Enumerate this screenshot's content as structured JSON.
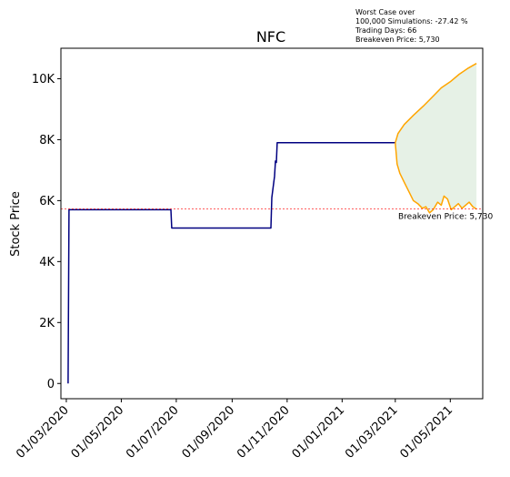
{
  "chart_data": {
    "type": "line",
    "title": "NFC",
    "ylabel": "Stock Price",
    "xlabel": "",
    "ylim": [
      -500,
      11000
    ],
    "xlim": [
      "2020-02-24",
      "2021-06-06"
    ],
    "yticks": [
      0,
      2000,
      4000,
      6000,
      8000,
      10000
    ],
    "ytick_labels": [
      "0",
      "2K",
      "4K",
      "6K",
      "8K",
      "10K"
    ],
    "xticks": [
      "2020-03-01",
      "2020-05-01",
      "2020-07-01",
      "2020-09-01",
      "2020-11-01",
      "2021-01-01",
      "2021-03-01",
      "2021-05-01"
    ],
    "xtick_labels": [
      "01/03/2020",
      "01/05/2020",
      "01/07/2020",
      "01/09/2020",
      "01/11/2020",
      "01/01/2021",
      "01/03/2021",
      "01/05/2021"
    ],
    "grid": false,
    "series": [
      {
        "role": "historical",
        "color": "#000080",
        "points": [
          [
            "2020-03-03",
            0
          ],
          [
            "2020-03-04",
            5700
          ],
          [
            "2020-06-25",
            5700
          ],
          [
            "2020-06-26",
            5100
          ],
          [
            "2020-10-14",
            5100
          ],
          [
            "2020-10-15",
            6100
          ],
          [
            "2020-10-18",
            6800
          ],
          [
            "2020-10-19",
            7300
          ],
          [
            "2020-10-20",
            7250
          ],
          [
            "2020-10-21",
            7900
          ],
          [
            "2021-03-01",
            7900
          ]
        ]
      },
      {
        "role": "upper_bound",
        "color": "#FFA500",
        "points": [
          [
            "2021-03-01",
            7900
          ],
          [
            "2021-03-04",
            8200
          ],
          [
            "2021-03-11",
            8500
          ],
          [
            "2021-03-21",
            8800
          ],
          [
            "2021-04-01",
            9100
          ],
          [
            "2021-04-11",
            9400
          ],
          [
            "2021-04-21",
            9700
          ],
          [
            "2021-05-01",
            9900
          ],
          [
            "2021-05-11",
            10150
          ],
          [
            "2021-05-21",
            10350
          ],
          [
            "2021-05-30",
            10500
          ]
        ]
      },
      {
        "role": "lower_bound",
        "color": "#FFA500",
        "points": [
          [
            "2021-03-01",
            7900
          ],
          [
            "2021-03-03",
            7200
          ],
          [
            "2021-03-06",
            6900
          ],
          [
            "2021-03-11",
            6600
          ],
          [
            "2021-03-16",
            6300
          ],
          [
            "2021-03-21",
            6000
          ],
          [
            "2021-03-26",
            5900
          ],
          [
            "2021-03-31",
            5750
          ],
          [
            "2021-04-04",
            5800
          ],
          [
            "2021-04-08",
            5600
          ],
          [
            "2021-04-12",
            5700
          ],
          [
            "2021-04-17",
            5950
          ],
          [
            "2021-04-21",
            5850
          ],
          [
            "2021-04-24",
            6150
          ],
          [
            "2021-04-28",
            6050
          ],
          [
            "2021-05-02",
            5700
          ],
          [
            "2021-05-06",
            5800
          ],
          [
            "2021-05-10",
            5900
          ],
          [
            "2021-05-14",
            5750
          ],
          [
            "2021-05-18",
            5850
          ],
          [
            "2021-05-22",
            5950
          ],
          [
            "2021-05-26",
            5800
          ],
          [
            "2021-05-30",
            5720
          ]
        ]
      }
    ],
    "fill": {
      "color": "#2E8B2E",
      "opacity": 0.12
    },
    "breakeven": {
      "value": 5730,
      "color": "#FF0000",
      "label": "Breakeven Price: 5,730"
    },
    "info_box": {
      "lines": [
        "Worst Case over",
        "100,000 Simulations: -27.42 %",
        "Trading Days: 66",
        "Breakeven Price: 5,730"
      ]
    }
  }
}
